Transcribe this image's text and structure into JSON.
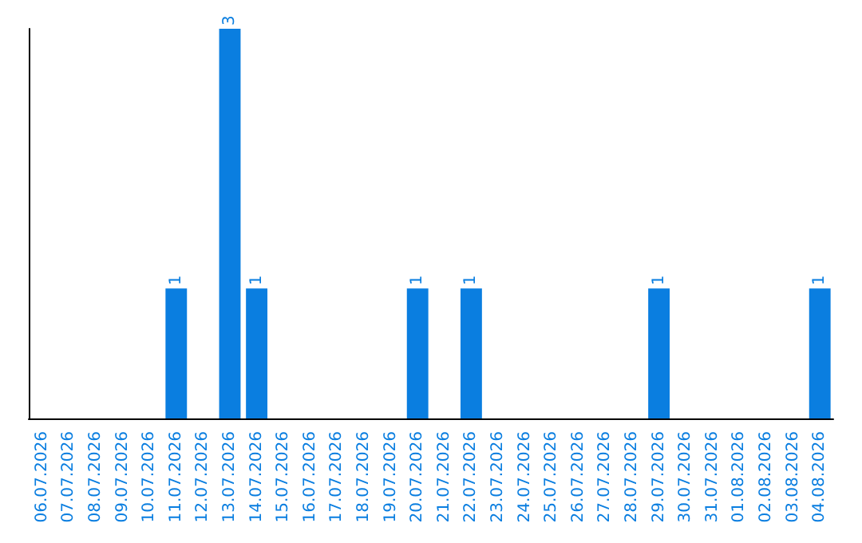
{
  "chart_data": {
    "type": "bar",
    "categories": [
      "06.07.2026",
      "07.07.2026",
      "08.07.2026",
      "09.07.2026",
      "10.07.2026",
      "11.07.2026",
      "12.07.2026",
      "13.07.2026",
      "14.07.2026",
      "15.07.2026",
      "16.07.2026",
      "17.07.2026",
      "18.07.2026",
      "19.07.2026",
      "20.07.2026",
      "21.07.2026",
      "22.07.2026",
      "23.07.2026",
      "24.07.2026",
      "25.07.2026",
      "26.07.2026",
      "27.07.2026",
      "28.07.2026",
      "29.07.2026",
      "30.07.2026",
      "31.07.2026",
      "01.08.2026",
      "02.08.2026",
      "03.08.2026",
      "04.08.2026"
    ],
    "values": [
      0,
      0,
      0,
      0,
      0,
      1,
      0,
      3,
      1,
      0,
      0,
      0,
      0,
      0,
      1,
      0,
      1,
      0,
      0,
      0,
      0,
      0,
      0,
      1,
      0,
      0,
      0,
      0,
      0,
      1
    ],
    "value_labels": [
      null,
      null,
      null,
      null,
      null,
      "1",
      null,
      "3",
      "1",
      null,
      null,
      null,
      null,
      null,
      "1",
      null,
      "1",
      null,
      null,
      null,
      null,
      null,
      null,
      "1",
      null,
      null,
      null,
      null,
      null,
      "1"
    ],
    "color": "#0a7ee0",
    "tick_labels": "x",
    "grid": false
  }
}
